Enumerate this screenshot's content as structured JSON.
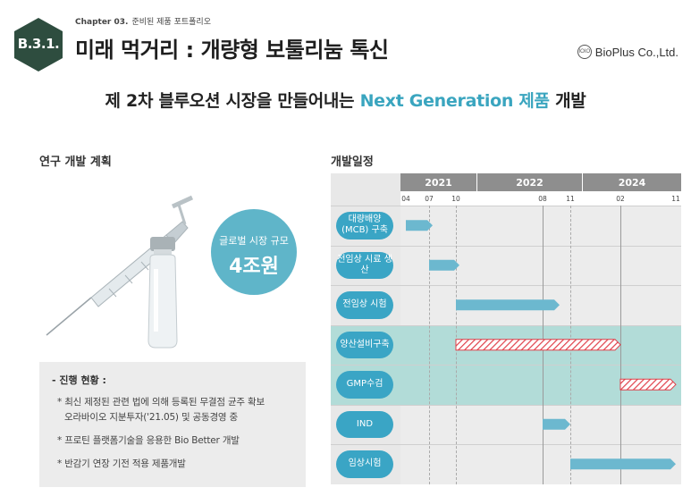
{
  "header": {
    "badge": "B.3.1.",
    "chapter_num": "Chapter 03.",
    "chapter_title": "준비된 제품 포트폴리오",
    "title": "미래 먹거리 : 개량형 보툴리눔 톡신",
    "logo_mark": "IOIO",
    "logo_text": "BioPlus Co.,Ltd."
  },
  "subtitle": {
    "prefix": "제 2차 블루오션 시장을 만들어내는",
    "highlight": "Next Generation 제품",
    "suffix": "개발"
  },
  "left": {
    "section_title": "연구 개발 계획",
    "bubble_line1": "글로벌 시장 규모",
    "bubble_line2": "4조원",
    "status_title": "- 진행 현황 :",
    "status_items": [
      "* 최신 제정된 관련 법에 의해 등록된 무결점 균주 확보",
      "오라바이오 지분투자('21.05) 및 공동경영 중",
      "* 프로틴 플랫폼기술을 응용한 Bio Better 개발",
      "* 반감기 연장 기전 적용 제품개발"
    ]
  },
  "right": {
    "section_title": "개발일정",
    "years": [
      "2021",
      "2022",
      "2024"
    ],
    "months": [
      "04",
      "07",
      "10",
      "08",
      "11",
      "02",
      "11"
    ],
    "tasks": [
      {
        "label": "대량배양 (MCB) 구축",
        "highlight": false,
        "pattern": "solid",
        "start": "2021-04",
        "end": "2021-08"
      },
      {
        "label": "전임상 시료 생산",
        "highlight": false,
        "pattern": "solid",
        "start": "2021-07",
        "end": "2021-11"
      },
      {
        "label": "전임상 시험",
        "highlight": false,
        "pattern": "solid",
        "start": "2021-10",
        "end": "2022-09"
      },
      {
        "label": "양산설비구축",
        "highlight": true,
        "pattern": "hatched",
        "start": "2021-10",
        "end": "2024-02"
      },
      {
        "label": "GMP수검",
        "highlight": true,
        "pattern": "hatched",
        "start": "2024-02",
        "end": "2024-11"
      },
      {
        "label": "IND",
        "highlight": false,
        "pattern": "solid",
        "start": "2022-08",
        "end": "2022-11"
      },
      {
        "label": "임상시험",
        "highlight": false,
        "pattern": "solid",
        "start": "2022-11",
        "end": "2024-11"
      }
    ],
    "colors": {
      "bar": "#6cb8cf",
      "hatch": "#e0404a",
      "label": "#3aa5c5",
      "highlight_row": "#b2dcd8"
    }
  }
}
